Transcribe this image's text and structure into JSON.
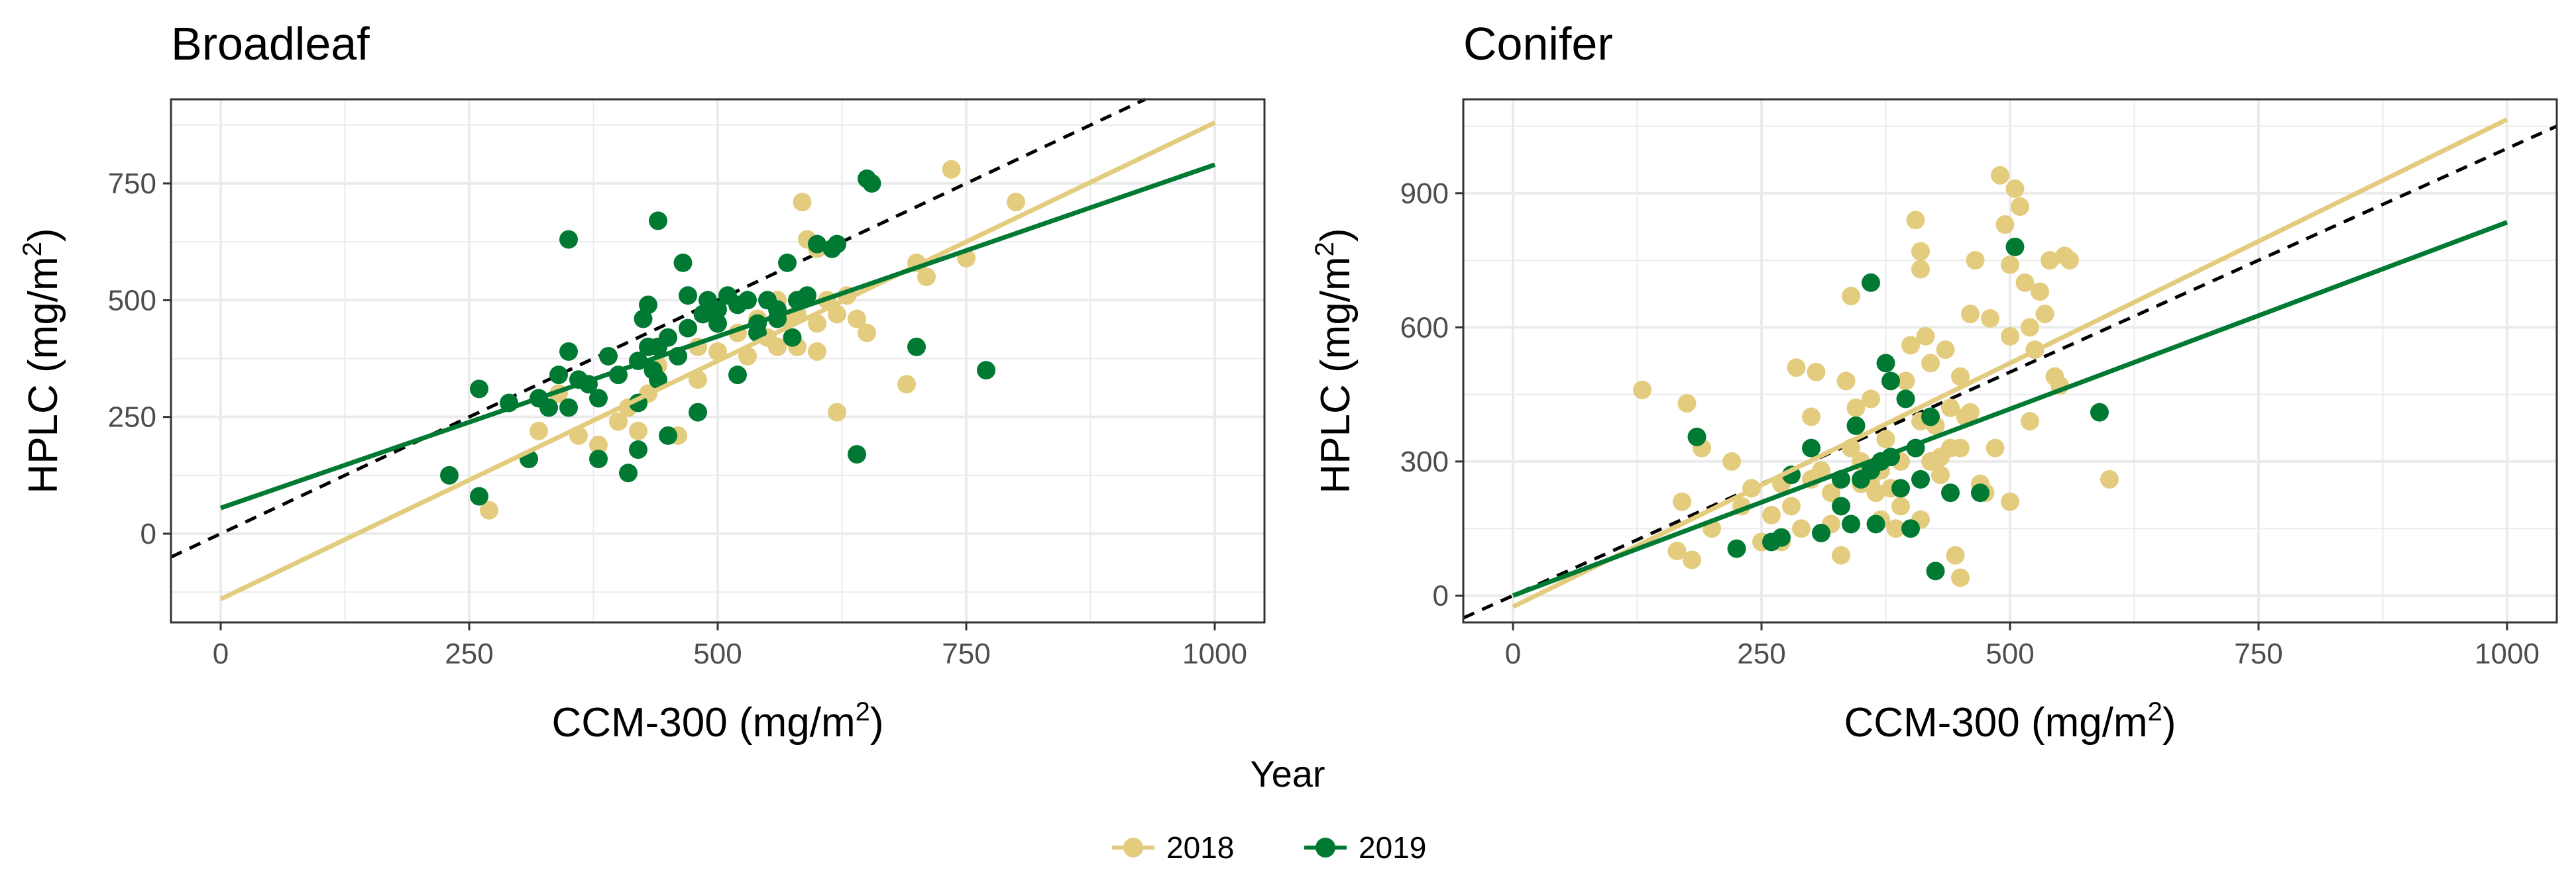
{
  "figure": {
    "legend": {
      "title": "Year",
      "placement": "bottom-center",
      "entries": [
        {
          "label": "2018",
          "color": "#e3cc7d"
        },
        {
          "label": "2019",
          "color": "#007a33"
        }
      ]
    }
  },
  "chart_data": [
    {
      "type": "scatter",
      "title": "Broadleaf",
      "xlabel": {
        "main": "CCM-300 (mg/m",
        "sup": "2",
        "end": ")"
      },
      "ylabel": {
        "main": "HPLC (mg/m",
        "sup": "2",
        "end": ")"
      },
      "xlim": [
        -50,
        1050
      ],
      "ylim": [
        -190,
        930
      ],
      "xticks": [
        0,
        250,
        500,
        750,
        1000
      ],
      "yticks": [
        0,
        250,
        500,
        750
      ],
      "grid": true,
      "one_to_one_line": {
        "style": "dashed",
        "color": "#000000"
      },
      "series": [
        {
          "name": "2018",
          "color": "#e3cc7d",
          "fit": {
            "intercept": -140,
            "slope": 1.02
          },
          "points": [
            [
              270,
              50
            ],
            [
              320,
              220
            ],
            [
              340,
              300
            ],
            [
              360,
              210
            ],
            [
              380,
              190
            ],
            [
              400,
              240
            ],
            [
              410,
              270
            ],
            [
              420,
              220
            ],
            [
              430,
              300
            ],
            [
              460,
              210
            ],
            [
              480,
              330
            ],
            [
              500,
              390
            ],
            [
              520,
              430
            ],
            [
              530,
              380
            ],
            [
              550,
              420
            ],
            [
              560,
              500
            ],
            [
              570,
              460
            ],
            [
              580,
              470
            ],
            [
              585,
              710
            ],
            [
              600,
              450
            ],
            [
              610,
              500
            ],
            [
              620,
              470
            ],
            [
              630,
              510
            ],
            [
              640,
              460
            ],
            [
              650,
              430
            ],
            [
              620,
              260
            ],
            [
              690,
              320
            ],
            [
              700,
              580
            ],
            [
              710,
              550
            ],
            [
              735,
              780
            ],
            [
              750,
              590
            ],
            [
              800,
              710
            ],
            [
              590,
              630
            ],
            [
              600,
              610
            ],
            [
              480,
              400
            ],
            [
              440,
              360
            ],
            [
              540,
              460
            ],
            [
              560,
              400
            ],
            [
              580,
              400
            ],
            [
              600,
              390
            ]
          ]
        },
        {
          "name": "2019",
          "color": "#007a33",
          "fit": {
            "intercept": 55,
            "slope": 0.735
          },
          "points": [
            [
              230,
              125
            ],
            [
              260,
              80
            ],
            [
              260,
              310
            ],
            [
              290,
              280
            ],
            [
              310,
              160
            ],
            [
              320,
              290
            ],
            [
              330,
              270
            ],
            [
              340,
              340
            ],
            [
              350,
              390
            ],
            [
              350,
              630
            ],
            [
              360,
              330
            ],
            [
              370,
              320
            ],
            [
              380,
              290
            ],
            [
              390,
              380
            ],
            [
              400,
              340
            ],
            [
              410,
              130
            ],
            [
              420,
              180
            ],
            [
              420,
              370
            ],
            [
              425,
              460
            ],
            [
              430,
              490
            ],
            [
              430,
              400
            ],
            [
              435,
              350
            ],
            [
              440,
              330
            ],
            [
              440,
              670
            ],
            [
              450,
              210
            ],
            [
              450,
              420
            ],
            [
              460,
              380
            ],
            [
              465,
              580
            ],
            [
              470,
              510
            ],
            [
              480,
              260
            ],
            [
              485,
              470
            ],
            [
              490,
              500
            ],
            [
              500,
              480
            ],
            [
              510,
              510
            ],
            [
              520,
              340
            ],
            [
              530,
              500
            ],
            [
              540,
              430
            ],
            [
              550,
              500
            ],
            [
              560,
              460
            ],
            [
              570,
              580
            ],
            [
              575,
              420
            ],
            [
              580,
              500
            ],
            [
              590,
              510
            ],
            [
              600,
              620
            ],
            [
              615,
              610
            ],
            [
              620,
              620
            ],
            [
              640,
              170
            ],
            [
              650,
              760
            ],
            [
              655,
              750
            ],
            [
              700,
              400
            ],
            [
              770,
              350
            ],
            [
              350,
              270
            ],
            [
              380,
              160
            ],
            [
              420,
              280
            ],
            [
              440,
              400
            ],
            [
              470,
              440
            ],
            [
              500,
              450
            ],
            [
              520,
              490
            ],
            [
              540,
              450
            ],
            [
              560,
              480
            ]
          ]
        }
      ]
    },
    {
      "type": "scatter",
      "title": "Conifer",
      "xlabel": {
        "main": "CCM-300 (mg/m",
        "sup": "2",
        "end": ")"
      },
      "ylabel": {
        "main": "HPLC (mg/m",
        "sup": "2",
        "end": ")"
      },
      "xlim": [
        -50,
        1050
      ],
      "ylim": [
        -60,
        1110
      ],
      "xticks": [
        0,
        250,
        500,
        750,
        1000
      ],
      "yticks": [
        0,
        300,
        600,
        900
      ],
      "grid": true,
      "one_to_one_line": {
        "style": "dashed",
        "color": "#000000"
      },
      "series": [
        {
          "name": "2018",
          "color": "#e3cc7d",
          "fit": {
            "intercept": -25,
            "slope": 1.09
          },
          "points": [
            [
              130,
              460
            ],
            [
              165,
              100
            ],
            [
              170,
              210
            ],
            [
              175,
              430
            ],
            [
              180,
              80
            ],
            [
              190,
              330
            ],
            [
              200,
              150
            ],
            [
              220,
              300
            ],
            [
              230,
              200
            ],
            [
              240,
              240
            ],
            [
              250,
              120
            ],
            [
              260,
              180
            ],
            [
              270,
              250
            ],
            [
              280,
              200
            ],
            [
              285,
              510
            ],
            [
              290,
              150
            ],
            [
              300,
              400
            ],
            [
              305,
              500
            ],
            [
              310,
              280
            ],
            [
              320,
              230
            ],
            [
              330,
              90
            ],
            [
              335,
              480
            ],
            [
              340,
              670
            ],
            [
              345,
              420
            ],
            [
              350,
              300
            ],
            [
              360,
              250
            ],
            [
              365,
              230
            ],
            [
              370,
              170
            ],
            [
              375,
              350
            ],
            [
              380,
              480
            ],
            [
              385,
              150
            ],
            [
              390,
              300
            ],
            [
              395,
              480
            ],
            [
              400,
              560
            ],
            [
              405,
              840
            ],
            [
              410,
              770
            ],
            [
              410,
              730
            ],
            [
              415,
              580
            ],
            [
              420,
              520
            ],
            [
              425,
              380
            ],
            [
              430,
              310
            ],
            [
              435,
              550
            ],
            [
              440,
              330
            ],
            [
              445,
              90
            ],
            [
              450,
              40
            ],
            [
              450,
              490
            ],
            [
              455,
              400
            ],
            [
              460,
              630
            ],
            [
              465,
              750
            ],
            [
              470,
              250
            ],
            [
              475,
              230
            ],
            [
              480,
              620
            ],
            [
              485,
              330
            ],
            [
              490,
              940
            ],
            [
              495,
              830
            ],
            [
              500,
              740
            ],
            [
              500,
              210
            ],
            [
              505,
              910
            ],
            [
              510,
              870
            ],
            [
              515,
              700
            ],
            [
              520,
              600
            ],
            [
              525,
              550
            ],
            [
              530,
              680
            ],
            [
              535,
              630
            ],
            [
              540,
              750
            ],
            [
              545,
              490
            ],
            [
              550,
              470
            ],
            [
              555,
              760
            ],
            [
              560,
              750
            ],
            [
              600,
              260
            ],
            [
              320,
              160
            ],
            [
              350,
              250
            ],
            [
              370,
              280
            ],
            [
              390,
              200
            ],
            [
              410,
              170
            ],
            [
              430,
              270
            ],
            [
              450,
              330
            ],
            [
              410,
              390
            ],
            [
              440,
              420
            ],
            [
              360,
              440
            ],
            [
              270,
              120
            ],
            [
              300,
              260
            ],
            [
              340,
              330
            ],
            [
              380,
              240
            ],
            [
              420,
              300
            ],
            [
              460,
              410
            ],
            [
              520,
              390
            ],
            [
              500,
              580
            ]
          ]
        },
        {
          "name": "2019",
          "color": "#007a33",
          "fit": {
            "intercept": 0,
            "slope": 0.835
          },
          "points": [
            [
              185,
              355
            ],
            [
              225,
              105
            ],
            [
              260,
              120
            ],
            [
              270,
              130
            ],
            [
              280,
              270
            ],
            [
              300,
              330
            ],
            [
              310,
              140
            ],
            [
              330,
              200
            ],
            [
              340,
              160
            ],
            [
              345,
              380
            ],
            [
              350,
              260
            ],
            [
              360,
              700
            ],
            [
              365,
              160
            ],
            [
              370,
              300
            ],
            [
              375,
              520
            ],
            [
              380,
              310
            ],
            [
              390,
              240
            ],
            [
              395,
              440
            ],
            [
              400,
              150
            ],
            [
              405,
              330
            ],
            [
              410,
              260
            ],
            [
              420,
              400
            ],
            [
              425,
              55
            ],
            [
              440,
              230
            ],
            [
              470,
              230
            ],
            [
              505,
              780
            ],
            [
              590,
              410
            ],
            [
              360,
              280
            ],
            [
              330,
              260
            ],
            [
              380,
              480
            ]
          ]
        }
      ]
    }
  ]
}
